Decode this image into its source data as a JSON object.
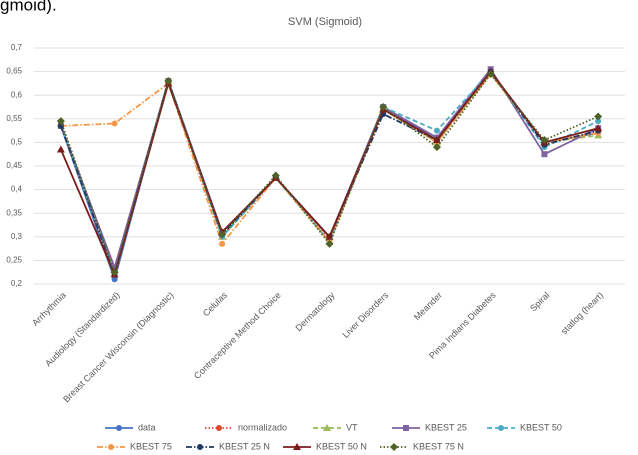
{
  "chart_data": {
    "type": "line",
    "title": "SVM (Sigmoid)",
    "annotation": "gmoid).",
    "categories": [
      "Arrhythmia",
      "Audiology (Standardized)",
      "Breast Cancer Wisconsin (Diagnostic)",
      "Celulas",
      "Contraceptive Method Choice",
      "Dermatology",
      "Liver Disorders",
      "Meander",
      "Pima Indians Diabetes",
      "Spiral",
      "statlog (heart)"
    ],
    "ylim": [
      0.2,
      0.7
    ],
    "yticks": [
      {
        "value": 0.2,
        "label": "0,2"
      },
      {
        "value": 0.25,
        "label": "0,25"
      },
      {
        "value": 0.3,
        "label": "0,3"
      },
      {
        "value": 0.35,
        "label": "0,35"
      },
      {
        "value": 0.4,
        "label": "0,4"
      },
      {
        "value": 0.45,
        "label": "0,45"
      },
      {
        "value": 0.5,
        "label": "0,5"
      },
      {
        "value": 0.55,
        "label": "0,55"
      },
      {
        "value": 0.6,
        "label": "0,6"
      },
      {
        "value": 0.65,
        "label": "0,65"
      },
      {
        "value": 0.7,
        "label": "0,7"
      }
    ],
    "grid": true,
    "legend": "bottom",
    "series": [
      {
        "name": "data",
        "color": "#4472c4",
        "style": "solid",
        "marker": "circle",
        "values": [
          0.535,
          0.21,
          0.63,
          0.31,
          0.425,
          0.3,
          0.57,
          0.51,
          0.65,
          0.5,
          0.52
        ]
      },
      {
        "name": "normalizado",
        "color": "#e0452f",
        "style": "dotted",
        "marker": "circle",
        "values": [
          0.535,
          0.22,
          0.625,
          0.3,
          0.425,
          0.295,
          0.57,
          0.5,
          0.65,
          0.5,
          0.52
        ]
      },
      {
        "name": "VT",
        "color": "#9bbb59",
        "style": "dashed",
        "marker": "triangle",
        "values": [
          0.54,
          0.23,
          0.63,
          0.3,
          0.425,
          0.29,
          0.57,
          0.5,
          0.645,
          0.5,
          0.515
        ]
      },
      {
        "name": "KBEST 25",
        "color": "#8064a2",
        "style": "solid",
        "marker": "square",
        "values": [
          0.535,
          0.235,
          0.63,
          0.31,
          0.425,
          0.3,
          0.575,
          0.51,
          0.655,
          0.475,
          0.53
        ]
      },
      {
        "name": "KBEST 50",
        "color": "#4bacc6",
        "style": "dashed",
        "marker": "circle",
        "values": [
          0.535,
          0.22,
          0.63,
          0.3,
          0.425,
          0.29,
          0.575,
          0.525,
          0.65,
          0.49,
          0.545
        ]
      },
      {
        "name": "KBEST 75",
        "color": "#f79646",
        "style": "dashdot",
        "marker": "circle",
        "values": [
          0.535,
          0.54,
          0.625,
          0.285,
          0.425,
          0.29,
          0.57,
          0.5,
          0.645,
          0.5,
          0.52
        ]
      },
      {
        "name": "KBEST 25 N",
        "color": "#1f3864",
        "style": "dashdot",
        "marker": "circle",
        "values": [
          0.535,
          0.22,
          0.63,
          0.305,
          0.425,
          0.3,
          0.56,
          0.505,
          0.65,
          0.495,
          0.525
        ]
      },
      {
        "name": "KBEST 50 N",
        "color": "#7b1c1c",
        "style": "solid",
        "marker": "triangle",
        "values": [
          0.485,
          0.22,
          0.625,
          0.31,
          0.425,
          0.3,
          0.57,
          0.505,
          0.65,
          0.5,
          0.53
        ]
      },
      {
        "name": "KBEST 75 N",
        "color": "#4f6228",
        "style": "dotted",
        "marker": "diamond",
        "values": [
          0.545,
          0.225,
          0.63,
          0.305,
          0.43,
          0.285,
          0.575,
          0.49,
          0.645,
          0.505,
          0.555
        ]
      }
    ]
  }
}
